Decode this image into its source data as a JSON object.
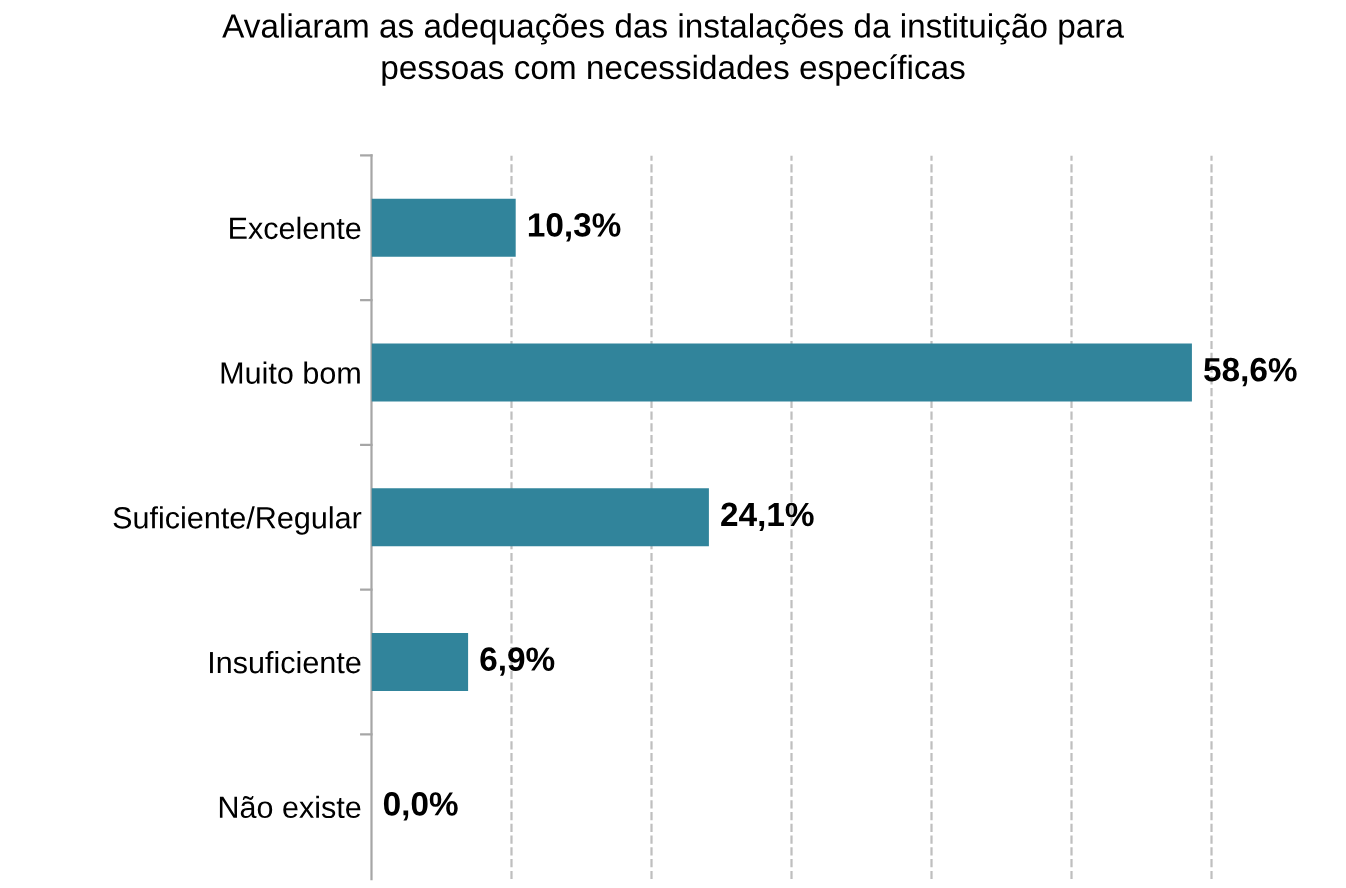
{
  "chart_data": {
    "type": "bar",
    "orientation": "horizontal",
    "title": "Avaliaram as adequações das instalações da instituição para\npessoas com necessidades específicas",
    "categories": [
      "Excelente",
      "Muito bom",
      "Suficiente/Regular",
      "Insuficiente",
      "Não existe"
    ],
    "values": [
      10.3,
      58.6,
      24.1,
      6.9,
      0.0
    ],
    "value_labels": [
      "10,3%",
      "58,6%",
      "24,1%",
      "6,9%",
      "0,0%"
    ],
    "color": "#31849b",
    "xticks": [
      {
        "value": 10,
        "label": null
      },
      {
        "value": 20,
        "label": null
      },
      {
        "value": 30,
        "label": null
      },
      {
        "value": 40,
        "label": null
      },
      {
        "value": 50,
        "label": null
      },
      {
        "value": 60,
        "label": null
      }
    ],
    "grid": "x",
    "line_style": "dashed",
    "legend": false
  }
}
